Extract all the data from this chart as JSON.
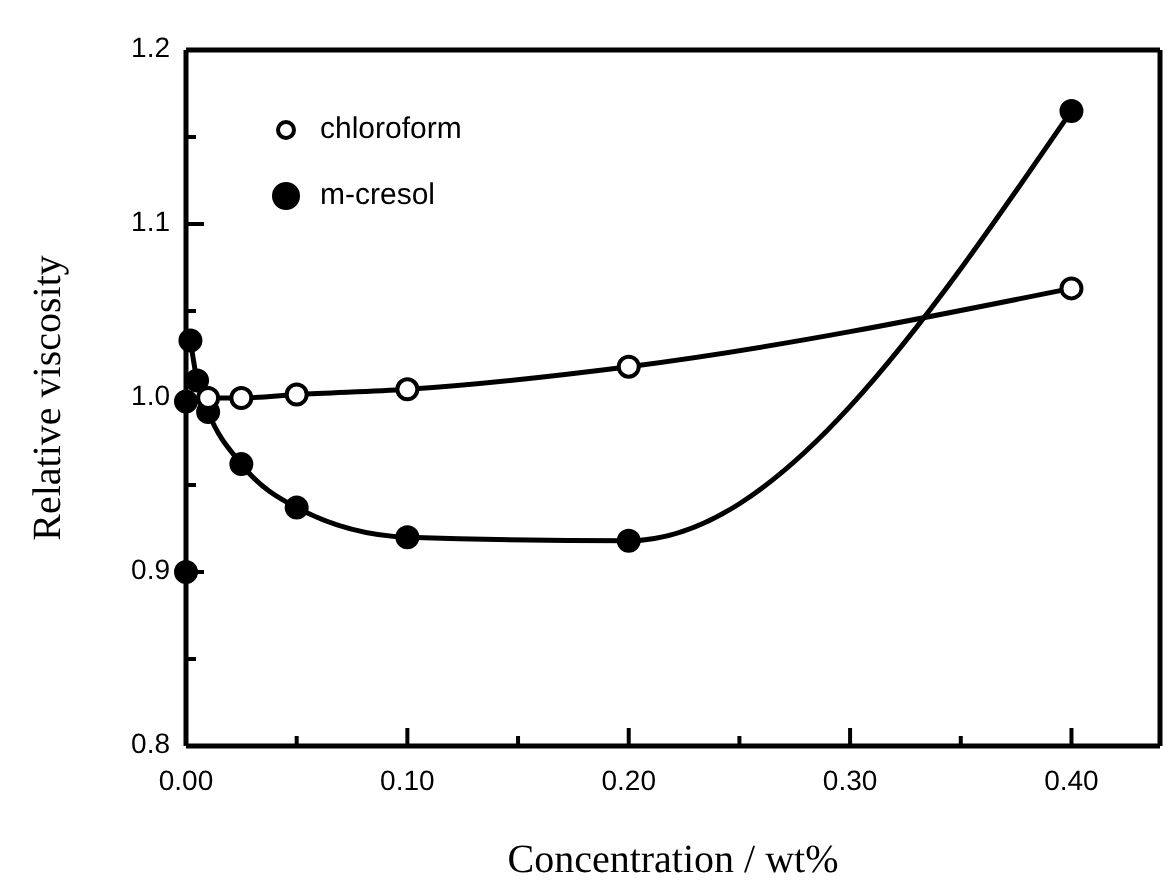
{
  "chart_data": {
    "type": "line",
    "xlabel": "Concentration / wt%",
    "ylabel": "Relative viscosity",
    "xlim": [
      0,
      0.44
    ],
    "ylim": [
      0.8,
      1.2
    ],
    "xticks": [
      {
        "value": 0,
        "label": "0.00"
      },
      {
        "value": 0.05,
        "label": null
      },
      {
        "value": 0.1,
        "label": "0.10"
      },
      {
        "value": 0.15,
        "label": null
      },
      {
        "value": 0.2,
        "label": "0.20"
      },
      {
        "value": 0.25,
        "label": null
      },
      {
        "value": 0.3,
        "label": "0.30"
      },
      {
        "value": 0.35,
        "label": null
      },
      {
        "value": 0.4,
        "label": "0.40"
      }
    ],
    "yticks": [
      0.8,
      {
        "value": 0.85,
        "label": null
      },
      0.9,
      {
        "value": 0.95,
        "label": null
      },
      {
        "value": 1.0,
        "label": "1.0"
      },
      {
        "value": 1.05,
        "label": null
      },
      1.1,
      {
        "value": 1.15,
        "label": null
      },
      1.2
    ],
    "grid": false,
    "legend": "top left",
    "marker": "circle",
    "line_style": "solid",
    "series": [
      {
        "name": "chloroform",
        "color": "#000000",
        "x": [
          0.01,
          0.025,
          0.05,
          0.1,
          0.2,
          0.4
        ],
        "values": [
          1.0,
          1.0,
          1.002,
          1.005,
          1.018,
          1.063
        ]
      },
      {
        "name": "m-cresol",
        "color": "#000000",
        "x": [
          0.002,
          0.005,
          0.01,
          0.025,
          0.05,
          0.1,
          0.2,
          0.4
        ],
        "values": [
          1.033,
          1.01,
          0.992,
          0.962,
          0.937,
          0.92,
          0.918,
          1.165
        ]
      },
      {
        "type": "scatter",
        "color": "#000000",
        "x": [
          0,
          0
        ],
        "values": [
          0.9,
          0.998
        ]
      }
    ]
  }
}
